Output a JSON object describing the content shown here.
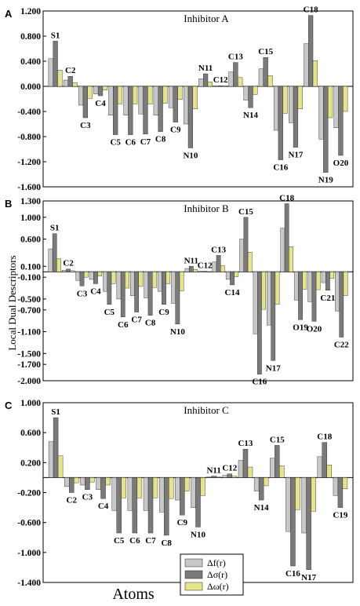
{
  "figure": {
    "ylabel": "Local Dual Descriptors",
    "xlabel": "Atoms",
    "legend": [
      {
        "label": "Δf(r)",
        "color": "#c8c8c8"
      },
      {
        "label": "Δσ(r)",
        "color": "#7a7a7a"
      },
      {
        "label": "Δω(r)",
        "color": "#e6e48a"
      }
    ]
  },
  "chart_data": [
    {
      "type": "bar",
      "panel": "A",
      "title": "Inhibitor A",
      "ylim": [
        -1.6,
        1.2
      ],
      "yticks": [
        "1.200",
        "0.800",
        "0.400",
        "0.000",
        "-0.400",
        "-0.800",
        "-1.200",
        "-1.600"
      ],
      "categories": [
        "S1",
        "C2",
        "C3",
        "C4",
        "C5",
        "C6",
        "C7",
        "C8",
        "C9",
        "N10",
        "N11",
        "C12",
        "C13",
        "N14",
        "C15",
        "C16",
        "N17",
        "C18",
        "N19",
        "O20"
      ],
      "series": [
        {
          "name": "Δf(r)",
          "values": [
            0.44,
            0.1,
            -0.3,
            -0.12,
            -0.46,
            -0.46,
            -0.44,
            -0.46,
            -0.34,
            -0.6,
            0.12,
            0.01,
            0.23,
            -0.22,
            0.28,
            -0.7,
            -0.58,
            0.68,
            -0.84,
            -0.66
          ]
        },
        {
          "name": "Δσ(r)",
          "values": [
            0.72,
            0.16,
            -0.5,
            -0.15,
            -0.77,
            -0.77,
            -0.76,
            -0.72,
            -0.57,
            -0.98,
            0.2,
            0.01,
            0.38,
            -0.34,
            0.46,
            -1.17,
            -0.97,
            1.13,
            -1.37,
            -1.1
          ]
        },
        {
          "name": "Δω(r)",
          "values": [
            0.26,
            0.06,
            -0.19,
            -0.06,
            -0.28,
            -0.28,
            -0.28,
            -0.27,
            -0.21,
            -0.36,
            0.07,
            0.01,
            0.14,
            -0.13,
            0.17,
            -0.43,
            -0.36,
            0.41,
            -0.5,
            -0.4
          ]
        }
      ]
    },
    {
      "type": "bar",
      "panel": "B",
      "title": "Inhibitor B",
      "ylim": [
        -2.0,
        1.3
      ],
      "yticks": [
        "1.300",
        "1.000",
        "0.600",
        "0.100",
        "-0.100",
        "-0.500",
        "-0.700",
        "-1.100",
        "-1.500",
        "-1.700",
        "-2.000"
      ],
      "categories": [
        "S1",
        "C2",
        "C3",
        "C4",
        "C5",
        "C6",
        "C7",
        "C8",
        "C9",
        "N10",
        "N11",
        "C12",
        "C13",
        "C14",
        "C15",
        "C16",
        "N17",
        "C18",
        "O19",
        "O20",
        "C21",
        "C22"
      ],
      "series": [
        {
          "name": "Δf(r)",
          "values": [
            0.42,
            0.03,
            -0.16,
            -0.14,
            -0.36,
            -0.5,
            -0.44,
            -0.48,
            -0.36,
            -0.58,
            0.06,
            0.01,
            0.18,
            -0.14,
            0.6,
            -1.14,
            -0.98,
            0.8,
            -0.52,
            -0.55,
            -0.2,
            -0.72
          ]
        },
        {
          "name": "Δσ(r)",
          "values": [
            0.7,
            0.05,
            -0.26,
            -0.22,
            -0.6,
            -0.83,
            -0.74,
            -0.8,
            -0.6,
            -0.96,
            0.1,
            0.01,
            0.3,
            -0.24,
            1.0,
            -1.88,
            -1.63,
            1.25,
            -0.88,
            -0.91,
            -0.34,
            -1.2
          ]
        },
        {
          "name": "Δω(r)",
          "values": [
            0.24,
            0.02,
            -0.1,
            -0.08,
            -0.22,
            -0.3,
            -0.27,
            -0.29,
            -0.22,
            -0.35,
            0.04,
            0.0,
            0.11,
            -0.09,
            0.36,
            -0.69,
            -0.6,
            0.46,
            -0.32,
            -0.33,
            -0.12,
            -0.44
          ]
        }
      ]
    },
    {
      "type": "bar",
      "panel": "C",
      "title": "Inhibitor C",
      "ylim": [
        -1.4,
        1.0
      ],
      "yticks": [
        "1.000",
        "0.600",
        "0.200",
        "-0.200",
        "-0.600",
        "-1.000",
        "-1.400"
      ],
      "categories": [
        "S1",
        "C2",
        "C3",
        "C4",
        "C5",
        "C6",
        "C7",
        "C8",
        "C9",
        "N10",
        "N11",
        "C12",
        "C13",
        "N14",
        "C15",
        "C16",
        "N17",
        "C18",
        "C19"
      ],
      "series": [
        {
          "name": "Δf(r)",
          "values": [
            0.48,
            -0.12,
            -0.1,
            -0.16,
            -0.44,
            -0.44,
            -0.44,
            -0.46,
            -0.3,
            -0.4,
            0.01,
            0.03,
            0.23,
            -0.18,
            0.26,
            -0.72,
            -0.74,
            0.28,
            -0.24
          ]
        },
        {
          "name": "Δσ(r)",
          "values": [
            0.8,
            -0.2,
            -0.16,
            -0.28,
            -0.74,
            -0.74,
            -0.74,
            -0.77,
            -0.5,
            -0.66,
            0.02,
            0.05,
            0.38,
            -0.3,
            0.43,
            -1.18,
            -1.23,
            0.47,
            -0.4
          ]
        },
        {
          "name": "Δω(r)",
          "values": [
            0.29,
            -0.07,
            -0.06,
            -0.1,
            -0.27,
            -0.27,
            -0.27,
            -0.28,
            -0.18,
            -0.24,
            0.01,
            0.02,
            0.14,
            -0.11,
            0.16,
            -0.43,
            -0.45,
            0.17,
            -0.15
          ]
        }
      ]
    }
  ]
}
